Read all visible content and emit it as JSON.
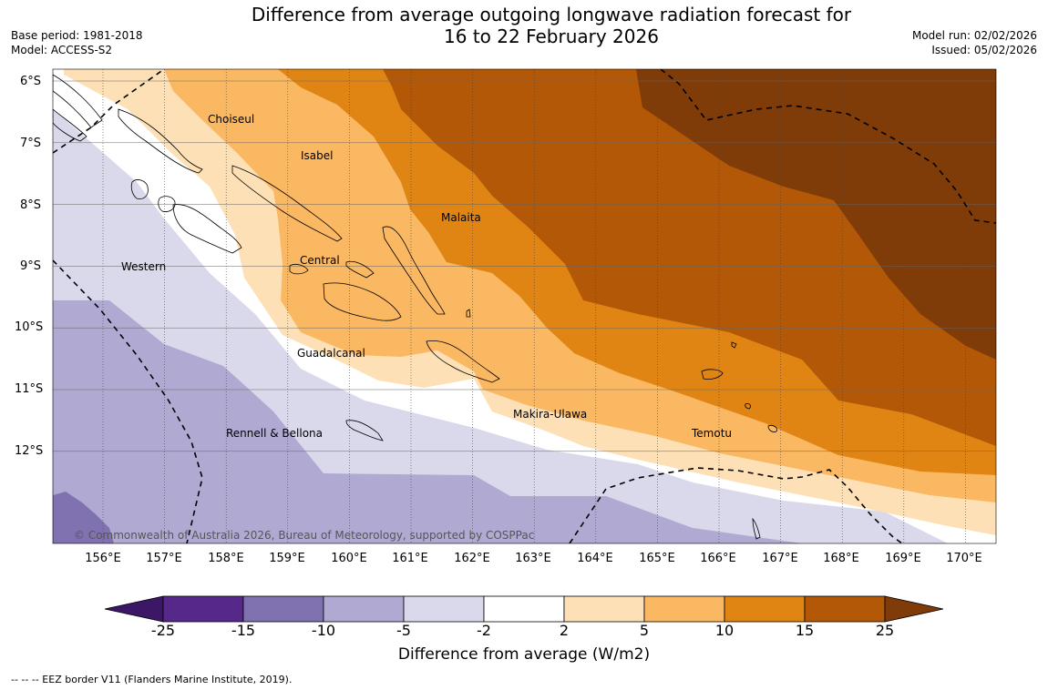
{
  "header": {
    "title_line1": "Difference from average outgoing longwave radiation forecast for",
    "title_line2": "16 to 22 February 2026",
    "base_period": "Base period: 1981-2018",
    "model": "Model: ACCESS-S2",
    "model_run": "Model run: 02/02/2026",
    "issued": "Issued: 05/02/2026"
  },
  "map": {
    "lat_labels": [
      "6°S",
      "7°S",
      "8°S",
      "9°S",
      "10°S",
      "11°S",
      "12°S"
    ],
    "lon_labels": [
      "156°E",
      "157°E",
      "158°E",
      "159°E",
      "160°E",
      "161°E",
      "162°E",
      "163°E",
      "164°E",
      "165°E",
      "166°E",
      "167°E",
      "168°E",
      "169°E",
      "170°E"
    ],
    "regions": [
      "Choiseul",
      "Isabel",
      "Malaita",
      "Western",
      "Central",
      "Guadalcanal",
      "Makira-Ulawa",
      "Rennell & Bellona",
      "Temotu"
    ],
    "copyright": "© Commonwealth of Australia 2026, Bureau of Meteorology, supported by COSPPac"
  },
  "colorbar": {
    "ticks": [
      "-25",
      "-15",
      "-10",
      "-5",
      "-2",
      "2",
      "5",
      "10",
      "15",
      "25"
    ],
    "colors": [
      "#3b1765",
      "#55288a",
      "#8072b0",
      "#b0aad2",
      "#d9d9eb",
      "#ffffff",
      "#fee0b6",
      "#fbb862",
      "#e08514",
      "#b35806",
      "#7f3b08"
    ],
    "title": "Difference from average (W/m2)"
  },
  "footer": {
    "eez_note": "--  --  -- EEZ border V11 (Flanders Marine Institute, 2019)."
  }
}
